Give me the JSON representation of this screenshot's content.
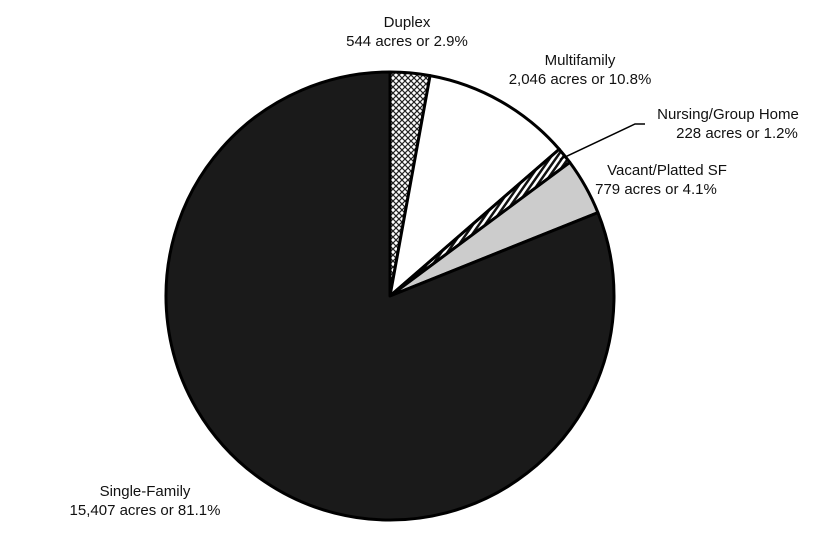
{
  "chart_data": {
    "type": "pie",
    "title": "",
    "unit": "acres",
    "slices": [
      {
        "name": "Duplex",
        "value": 544,
        "percent": 2.9,
        "label_line2": "544 acres or 2.9%",
        "fill": "crosshatch"
      },
      {
        "name": "Multifamily",
        "value": 2046,
        "percent": 10.8,
        "label_line2": "2,046 acres or 10.8%",
        "fill": "#ffffff"
      },
      {
        "name": "Nursing/Group Home",
        "value": 228,
        "percent": 1.2,
        "label_line2": "228 acres or 1.2%",
        "fill": "stripes"
      },
      {
        "name": "Vacant/Platted SF",
        "value": 779,
        "percent": 4.1,
        "label_line2": "779 acres or 4.1%",
        "fill": "#cccccc"
      },
      {
        "name": "Single-Family",
        "value": 15407,
        "percent": 81.1,
        "label_line2": "15,407 acres or 81.1%",
        "fill": "#1a1a1a"
      }
    ],
    "outline_color": "#000000"
  }
}
